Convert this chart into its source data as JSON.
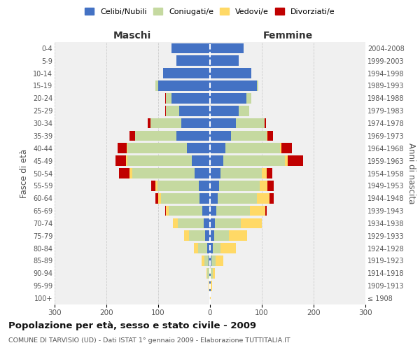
{
  "age_groups": [
    "100+",
    "95-99",
    "90-94",
    "85-89",
    "80-84",
    "75-79",
    "70-74",
    "65-69",
    "60-64",
    "55-59",
    "50-54",
    "45-49",
    "40-44",
    "35-39",
    "30-34",
    "25-29",
    "20-24",
    "15-19",
    "10-14",
    "5-9",
    "0-4"
  ],
  "birth_years": [
    "≤ 1908",
    "1909-1913",
    "1914-1918",
    "1919-1923",
    "1924-1928",
    "1929-1933",
    "1934-1938",
    "1939-1943",
    "1944-1948",
    "1949-1953",
    "1954-1958",
    "1959-1963",
    "1964-1968",
    "1969-1973",
    "1974-1978",
    "1979-1983",
    "1984-1988",
    "1989-1993",
    "1994-1998",
    "1999-2003",
    "2004-2008"
  ],
  "maschi": {
    "celibi": [
      0,
      1,
      2,
      3,
      5,
      10,
      12,
      15,
      20,
      22,
      30,
      35,
      45,
      65,
      55,
      60,
      75,
      100,
      90,
      65,
      75
    ],
    "coniugati": [
      0,
      1,
      3,
      8,
      18,
      30,
      50,
      65,
      75,
      80,
      120,
      125,
      115,
      80,
      60,
      25,
      10,
      5,
      0,
      0,
      0
    ],
    "vedovi": [
      0,
      1,
      2,
      5,
      8,
      10,
      10,
      5,
      5,
      3,
      5,
      2,
      1,
      0,
      0,
      0,
      0,
      0,
      0,
      0,
      0
    ],
    "divorziati": [
      0,
      0,
      0,
      0,
      0,
      0,
      0,
      2,
      5,
      8,
      20,
      20,
      18,
      10,
      5,
      2,
      1,
      0,
      0,
      0,
      0
    ]
  },
  "femmine": {
    "nubili": [
      0,
      1,
      2,
      3,
      5,
      8,
      10,
      12,
      15,
      18,
      20,
      25,
      30,
      40,
      50,
      55,
      70,
      90,
      80,
      55,
      65
    ],
    "coniugate": [
      0,
      1,
      3,
      8,
      15,
      28,
      50,
      65,
      75,
      78,
      80,
      120,
      105,
      70,
      55,
      20,
      10,
      3,
      0,
      0,
      0
    ],
    "vedove": [
      1,
      2,
      5,
      15,
      30,
      35,
      40,
      30,
      25,
      15,
      10,
      5,
      3,
      1,
      0,
      0,
      0,
      0,
      0,
      0,
      0
    ],
    "divorziate": [
      0,
      0,
      0,
      0,
      0,
      0,
      0,
      2,
      8,
      12,
      10,
      30,
      20,
      10,
      3,
      1,
      0,
      0,
      0,
      0,
      0
    ]
  },
  "colors": {
    "celibi": "#4472c4",
    "coniugati": "#c5d9a0",
    "vedovi": "#ffd966",
    "divorziati": "#c00000"
  },
  "xlim": 300,
  "title": "Popolazione per età, sesso e stato civile - 2009",
  "subtitle": "COMUNE DI TARVISIO (UD) - Dati ISTAT 1° gennaio 2009 - Elaborazione TUTTITALIA.IT",
  "ylabel_left": "Fasce di età",
  "ylabel_right": "Anni di nascita",
  "xlabel_maschi": "Maschi",
  "xlabel_femmine": "Femmine",
  "legend_labels": [
    "Celibi/Nubili",
    "Coniugati/e",
    "Vedovi/e",
    "Divorziati/e"
  ],
  "bg_color": "#f0f0f0",
  "grid_color": "#cccccc"
}
